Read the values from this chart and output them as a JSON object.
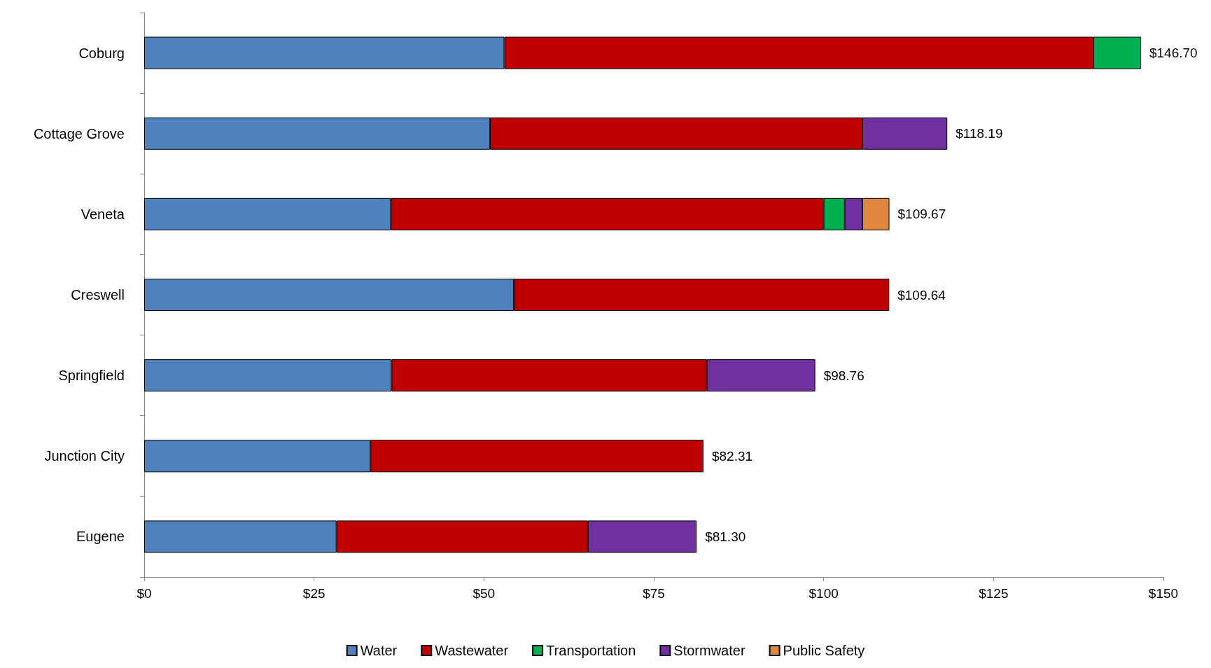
{
  "chart_data": {
    "type": "bar",
    "orientation": "horizontal",
    "stacked": true,
    "legend": "bottom",
    "grid": false,
    "categories": [
      "Coburg",
      "Cottage Grove",
      "Veneta",
      "Creswell",
      "Springfield",
      "Junction City",
      "Eugene"
    ],
    "series": [
      {
        "name": "Water",
        "color": "#4f81bd",
        "values": [
          53.0,
          50.9,
          36.3,
          54.4,
          36.4,
          33.3,
          28.3
        ]
      },
      {
        "name": "Wastewater",
        "color": "#c00000",
        "values": [
          86.7,
          54.8,
          63.7,
          55.24,
          46.4,
          49.01,
          37.0
        ]
      },
      {
        "name": "Transportation",
        "color": "#00b050",
        "values": [
          7.0,
          null,
          3.1,
          null,
          null,
          null,
          null
        ]
      },
      {
        "name": "Stormwater",
        "color": "#7030a0",
        "values": [
          null,
          12.49,
          2.6,
          null,
          15.96,
          null,
          16.0
        ]
      },
      {
        "name": "Public Safety",
        "color": "#e0873f",
        "values": [
          null,
          null,
          3.97,
          null,
          null,
          null,
          null
        ]
      }
    ],
    "totals": [
      "$146.70",
      "$118.19",
      "$109.67",
      "$109.64",
      "$98.76",
      "$82.31",
      "$81.30"
    ],
    "xlim": [
      0,
      150
    ],
    "xticks": [
      {
        "value": 0,
        "label": "$0"
      },
      {
        "value": 25,
        "label": "$25"
      },
      {
        "value": 50,
        "label": "$50"
      },
      {
        "value": 75,
        "label": "$75"
      },
      {
        "value": 100,
        "label": "$100"
      },
      {
        "value": 125,
        "label": "$125"
      },
      {
        "value": 150,
        "label": "$150"
      }
    ]
  }
}
